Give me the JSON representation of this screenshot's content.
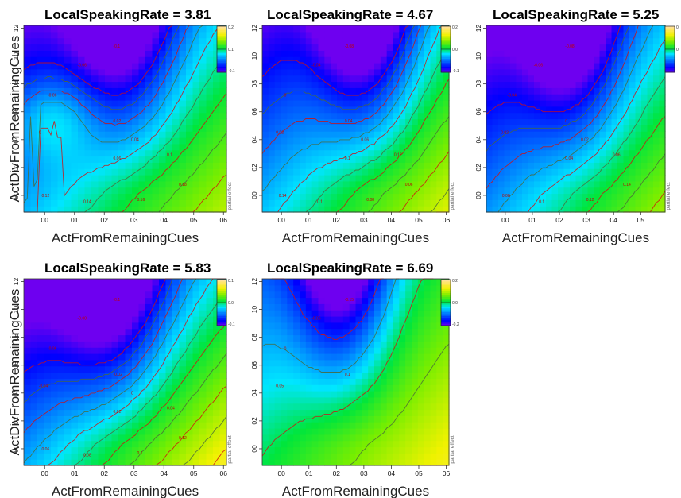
{
  "figure": {
    "y_axis_title": "ActDivFromRemainingCues",
    "x_axis_title": "ActFromRemainingCues",
    "side_label": "partial effect"
  },
  "chart_data": [
    {
      "type": "heatmap",
      "title": "LocalSpeakingRate =  3.81",
      "xlabel": "ActFromRemainingCues",
      "ylabel": "ActDivFromRemainingCues",
      "xlim": [
        -0.07,
        0.61
      ],
      "ylim": [
        -0.12,
        1.22
      ],
      "x_ticks": [
        "00",
        "01",
        "02",
        "03",
        "04",
        "05",
        "06"
      ],
      "y_ticks": [
        "00",
        "02",
        "04",
        "06",
        "08",
        "10",
        "12"
      ],
      "colorbar": {
        "max_label": "0.2",
        "mid_label": "0.1",
        "min_label": "-0.1",
        "zmin": -0.12,
        "zmax": 0.22
      },
      "contour_labels": [
        "-0.1",
        "-0.06",
        "-0.06",
        "0",
        "0.02",
        "0.04",
        "0.06",
        "0.1",
        "0.12",
        "0.14",
        "0.16",
        "0.18"
      ],
      "field": {
        "base": 0.0,
        "valley_x": 0.26,
        "valley_depth": 0.12,
        "left_bump": 0.06
      }
    },
    {
      "type": "heatmap",
      "title": "LocalSpeakingRate =  4.67",
      "xlabel": "ActFromRemainingCues",
      "ylabel": "",
      "xlim": [
        -0.07,
        0.61
      ],
      "ylim": [
        -0.12,
        1.22
      ],
      "x_ticks": [
        "00",
        "01",
        "02",
        "03",
        "04",
        "05",
        "06"
      ],
      "y_ticks": [
        "00",
        "02",
        "04",
        "06",
        "08",
        "10",
        "12"
      ],
      "colorbar": {
        "max_label": "0.2",
        "mid_label": "0.0",
        "min_label": "-0.1",
        "zmin": -0.12,
        "zmax": 0.2
      },
      "contour_labels": [
        "-0.08",
        "-0.04",
        "0",
        "0.02",
        "0.04",
        "0.06",
        "0.1",
        "0.12",
        "0.14",
        "0.1",
        "0.08",
        "0.06"
      ],
      "field": {
        "base": 0.0,
        "valley_x": 0.3,
        "valley_depth": 0.13,
        "left_bump": 0.0
      }
    },
    {
      "type": "heatmap",
      "title": "LocalSpeakingRate =  5.25",
      "xlabel": "ActFromRemainingCues",
      "ylabel": "",
      "xlim": [
        -0.07,
        0.59
      ],
      "ylim": [
        -0.12,
        1.22
      ],
      "x_ticks": [
        "00",
        "01",
        "02",
        "03",
        "04",
        "05"
      ],
      "y_ticks": [
        "00",
        "02",
        "04",
        "06",
        "08",
        "10",
        "12"
      ],
      "colorbar": {
        "max_label": "0.",
        "mid_label": "0.",
        "min_label": "-",
        "zmin": -0.12,
        "zmax": 0.2
      },
      "contour_labels": [
        "-0.08",
        "-0.06",
        "-0.04",
        "-0.02",
        "0",
        "0.02",
        "0.04",
        "0.06",
        "0.08",
        "0.1",
        "0.12",
        "0.14"
      ],
      "field": {
        "base": -0.02,
        "valley_x": 0.24,
        "valley_depth": 0.12,
        "left_bump": 0.0
      }
    },
    {
      "type": "heatmap",
      "title": "LocalSpeakingRate =  5.83",
      "xlabel": "ActFromRemainingCues",
      "ylabel": "ActDivFromRemainingCues",
      "xlim": [
        -0.07,
        0.61
      ],
      "ylim": [
        -0.12,
        1.22
      ],
      "x_ticks": [
        "00",
        "01",
        "02",
        "03",
        "04",
        "05",
        "06"
      ],
      "y_ticks": [
        "00",
        "02",
        "04",
        "06",
        "08",
        "10",
        "12"
      ],
      "colorbar": {
        "max_label": "0.1",
        "mid_label": "0.0",
        "min_label": "-0.1",
        "zmin": -0.12,
        "zmax": 0.14
      },
      "contour_labels": [
        "-0.1",
        "-0.08",
        "-0.06",
        "-0.04",
        "-0.02",
        "0",
        "0.02",
        "0.04",
        "0.06",
        "0.08",
        "0.1",
        "0.12"
      ],
      "field": {
        "base": -0.03,
        "valley_x": 0.22,
        "valley_depth": 0.1,
        "left_bump": 0.0
      }
    },
    {
      "type": "heatmap",
      "title": "LocalSpeakingRate =  6.69",
      "xlabel": "ActFromRemainingCues",
      "ylabel": "",
      "xlim": [
        -0.07,
        0.61
      ],
      "ylim": [
        -0.12,
        1.22
      ],
      "x_ticks": [
        "00",
        "01",
        "02",
        "03",
        "04",
        "05",
        "06"
      ],
      "y_ticks": [
        "00",
        "02",
        "04",
        "06",
        "08",
        "10",
        "12"
      ],
      "colorbar": {
        "max_label": "0.2",
        "mid_label": "0.0",
        "min_label": "-0.2",
        "zmin": -0.2,
        "zmax": 0.22
      },
      "contour_labels": [
        "-0.15",
        "-0.05",
        "0",
        "0.05",
        "0.1"
      ],
      "field": {
        "base": 0.02,
        "valley_x": 0.22,
        "valley_depth": 0.18,
        "left_bump": 0.0
      }
    }
  ]
}
